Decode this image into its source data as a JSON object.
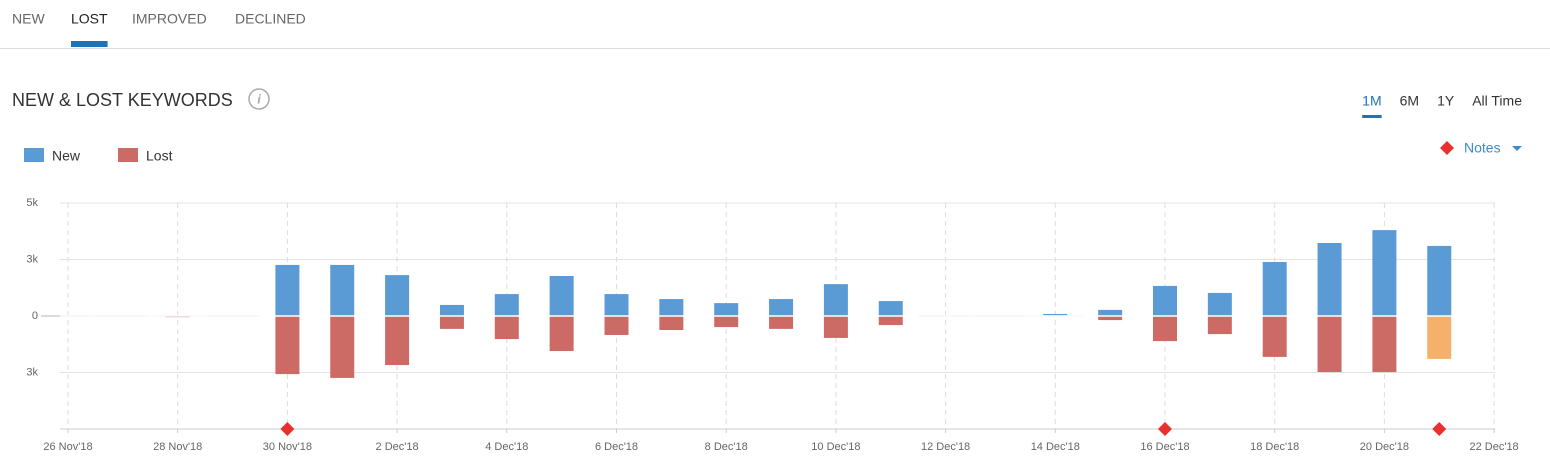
{
  "tabs": [
    "NEW",
    "LOST",
    "IMPROVED",
    "DECLINED"
  ],
  "active_tab": 1,
  "title": "NEW & LOST KEYWORDS",
  "periods": [
    "1M",
    "6M",
    "1Y",
    "All Time"
  ],
  "active_period": 0,
  "chart_data": {
    "type": "bar",
    "categories": [
      "26 Nov'18",
      null,
      "28 Nov'18",
      null,
      "30 Nov'18",
      null,
      "2 Dec'18",
      null,
      "4 Dec'18",
      null,
      "6 Dec'18",
      null,
      "8 Dec'18",
      null,
      "10 Dec'18",
      null,
      "12 Dec'18",
      null,
      "14 Dec'18",
      null,
      "16 Dec'18",
      null,
      "18 Dec'18",
      null,
      "20 Dec'18",
      null,
      "22 Dec'18"
    ],
    "series": [
      {
        "name": "New",
        "color": "#5b9bd5",
        "values": [
          0,
          0,
          0,
          0,
          2260,
          2260,
          1810,
          490,
          970,
          1770,
          970,
          750,
          570,
          750,
          1410,
          660,
          0,
          0,
          90,
          270,
          1330,
          1020,
          2390,
          3230,
          3800,
          3100,
          null
        ]
      },
      {
        "name": "Lost",
        "color": "#cc6b66",
        "values": [
          0,
          0,
          -50,
          0,
          -2570,
          -2740,
          -2170,
          -570,
          -1020,
          -1550,
          -840,
          -620,
          -490,
          -570,
          -970,
          -400,
          0,
          0,
          0,
          -180,
          -1110,
          -800,
          -1810,
          -2480,
          -2480,
          -1900,
          null
        ],
        "highlight": [
          25
        ],
        "highlight_color": "#f5b16b"
      }
    ],
    "ylim": [
      -5000,
      5000
    ],
    "yticks": [
      {
        "value": 5000,
        "label": "5k"
      },
      {
        "value": 2500,
        "label": "3k"
      },
      0,
      {
        "value": -2500,
        "label": "3k"
      }
    ],
    "grid": true,
    "notes": {
      "label": "Notes",
      "color": "#e8312f",
      "at": [
        4,
        20,
        25
      ]
    }
  }
}
